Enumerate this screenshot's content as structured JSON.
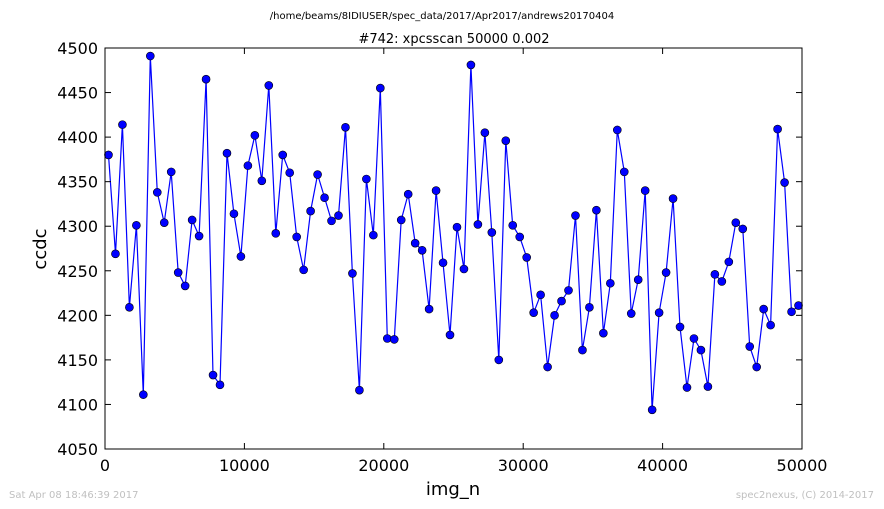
{
  "header": {
    "file_path": "/home/beams/8IDIUSER/spec_data/2017/Apr2017/andrews20170404",
    "scan_title": "#742: xpcsscan 50000 0.002"
  },
  "footer": {
    "timestamp": "Sat Apr 08 18:46:39 2017",
    "credit": "spec2nexus, (C) 2014-2017"
  },
  "colors": {
    "series": "#0000ff",
    "axes": "#000000",
    "footer_text": "#c0c0c0"
  },
  "chart_data": {
    "type": "line",
    "title": "#742: xpcsscan 50000 0.002",
    "xlabel": "img_n",
    "ylabel": "ccdc",
    "xlim": [
      0,
      50000
    ],
    "ylim": [
      4050,
      4500
    ],
    "xticks": [
      0,
      10000,
      20000,
      30000,
      40000,
      50000
    ],
    "yticks": [
      4050,
      4100,
      4150,
      4200,
      4250,
      4300,
      4350,
      4400,
      4450,
      4500
    ],
    "grid": false,
    "legend": "none",
    "marker": "circle",
    "series": [
      {
        "x": [
          250,
          750,
          1250,
          1750,
          2250,
          2750,
          3250,
          3750,
          4250,
          4750,
          5250,
          5750,
          6250,
          6750,
          7250,
          7750,
          8250,
          8750,
          9250,
          9750,
          10250,
          10750,
          11250,
          11750,
          12250,
          12750,
          13250,
          13750,
          14250,
          14750,
          15250,
          15750,
          16250,
          16750,
          17250,
          17750,
          18250,
          18750,
          19250,
          19750,
          20250,
          20750,
          21250,
          21750,
          22250,
          22750,
          23250,
          23750,
          24250,
          24750,
          25250,
          25750,
          26250,
          26750,
          27250,
          27750,
          28250,
          28750,
          29250,
          29750,
          30250,
          30750,
          31250,
          31750,
          32250,
          32750,
          33250,
          33750,
          34250,
          34750,
          35250,
          35750,
          36250,
          36750,
          37250,
          37750,
          38250,
          38750,
          39250,
          39750,
          40250,
          40750,
          41250,
          41750,
          42250,
          42750,
          43250,
          43750,
          44250,
          44750,
          45250,
          45750,
          46250,
          46750,
          47250,
          47750,
          48250,
          48750,
          49250,
          49750
        ],
        "values": [
          4380,
          4269,
          4414,
          4209,
          4301,
          4111,
          4491,
          4338,
          4304,
          4361,
          4248,
          4233,
          4307,
          4289,
          4465,
          4133,
          4122,
          4382,
          4314,
          4266,
          4368,
          4402,
          4351,
          4458,
          4292,
          4380,
          4360,
          4288,
          4251,
          4317,
          4358,
          4332,
          4306,
          4312,
          4411,
          4247,
          4116,
          4353,
          4290,
          4455,
          4174,
          4173,
          4307,
          4336,
          4281,
          4273,
          4207,
          4340,
          4259,
          4178,
          4299,
          4252,
          4481,
          4302,
          4405,
          4293,
          4150,
          4396,
          4301,
          4288,
          4265,
          4203,
          4223,
          4142,
          4200,
          4216,
          4228,
          4312,
          4161,
          4209,
          4318,
          4180,
          4236,
          4408,
          4361,
          4202,
          4240,
          4340,
          4094,
          4203,
          4248,
          4331,
          4187,
          4119,
          4174,
          4161,
          4120,
          4246,
          4238,
          4260,
          4304,
          4297,
          4165,
          4142,
          4207,
          4189,
          4409,
          4349,
          4204,
          4211
        ]
      }
    ]
  }
}
